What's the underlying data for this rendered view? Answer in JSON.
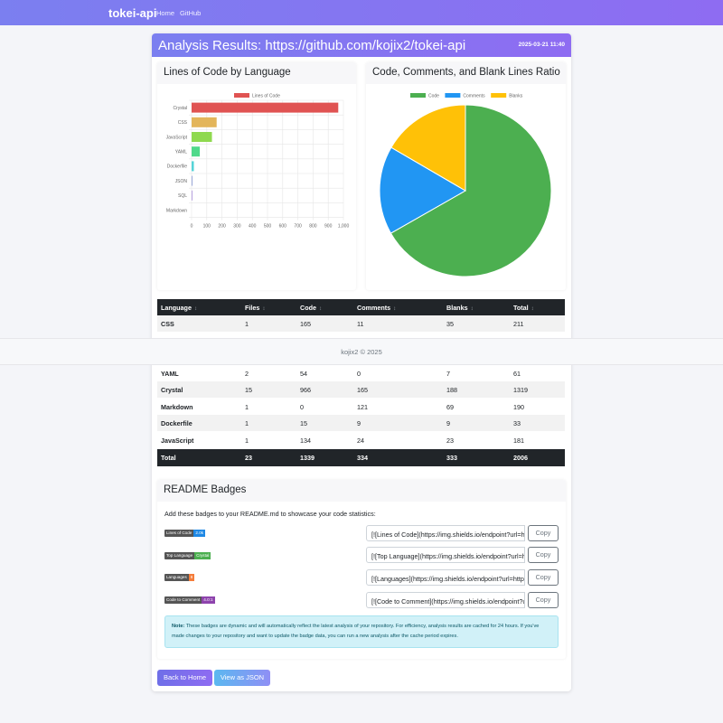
{
  "nav": {
    "brand": "tokei-api",
    "links": [
      "Home",
      "GitHub"
    ]
  },
  "header": {
    "title": "Analysis Results: https://github.com/kojix2/tokei-api",
    "date": "2025-03-21 11:40"
  },
  "colors": {
    "accent": "#7b7ff0",
    "accent2": "#8e6cf2",
    "dark": "#212529"
  },
  "bar_panel": {
    "title": "Lines of Code by Language"
  },
  "pie_panel": {
    "title": "Code, Comments, and Blank Lines Ratio"
  },
  "chart_data": [
    {
      "type": "bar",
      "orientation": "horizontal",
      "categories": [
        "Crystal",
        "CSS",
        "JavaScript",
        "YAML",
        "Dockerfile",
        "JSON",
        "SQL",
        "Markdown"
      ],
      "series": [
        {
          "name": "Lines of Code",
          "values": [
            966,
            165,
            134,
            54,
            15,
            3,
            1,
            0
          ],
          "colors": [
            "#e05352",
            "#e3b55a",
            "#8fd94f",
            "#4fd98a",
            "#56d4d8",
            "#9aa8d8",
            "#b8a2e0",
            "#e0a2c8"
          ]
        }
      ],
      "x_ticks": [
        "0",
        "100",
        "200",
        "300",
        "400",
        "500",
        "600",
        "700",
        "800",
        "900",
        "1,000"
      ],
      "xlim": [
        0,
        1000
      ],
      "grid": true,
      "legend": "top"
    },
    {
      "type": "pie",
      "labels": [
        "Code",
        "Comments",
        "Blanks"
      ],
      "values": [
        1339,
        334,
        333
      ],
      "colors": [
        "#4caf50",
        "#2196f3",
        "#ffc107"
      ],
      "legend": "top"
    }
  ],
  "table": {
    "headers": [
      "Language",
      "Files",
      "Code",
      "Comments",
      "Blanks",
      "Total"
    ],
    "sort_icon": "↕",
    "top_rows": [
      [
        "CSS",
        "1",
        "165",
        "11",
        "35",
        "211"
      ]
    ],
    "bottom_rows": [
      [
        "YAML",
        "2",
        "54",
        "0",
        "7",
        "61"
      ],
      [
        "Crystal",
        "15",
        "966",
        "165",
        "188",
        "1319"
      ],
      [
        "Markdown",
        "1",
        "0",
        "121",
        "69",
        "190"
      ],
      [
        "Dockerfile",
        "1",
        "15",
        "9",
        "9",
        "33"
      ],
      [
        "JavaScript",
        "1",
        "134",
        "24",
        "23",
        "181"
      ]
    ],
    "total": [
      "Total",
      "23",
      "1339",
      "334",
      "333",
      "2006"
    ]
  },
  "footer": {
    "text": "kojix2 © 2025"
  },
  "badges": {
    "title": "README Badges",
    "intro": "Add these badges to your README.md to showcase your code statistics:",
    "items": [
      {
        "label": "Lines of Code",
        "value": "2.0k",
        "color": "#1e88e5",
        "code": "[![Lines of Code](https://img.shields.io/endpoint?url=https",
        "copy": "Copy"
      },
      {
        "label": "Top Language",
        "value": "Crystal",
        "color": "#4caf50",
        "code": "[![Top Language](https://img.shields.io/endpoint?url=htt",
        "copy": "Copy"
      },
      {
        "label": "Languages",
        "value": "8",
        "color": "#f57c3a",
        "code": "[![Languages](https://img.shields.io/endpoint?url=https%",
        "copy": "Copy"
      },
      {
        "label": "Code to Comment",
        "value": "4.0:1",
        "color": "#8e44ad",
        "code": "[![Code to Comment](https://img.shields.io/endpoint?url",
        "copy": "Copy"
      }
    ],
    "note_label": "Note:",
    "note_text": "These badges are dynamic and will automatically reflect the latest analysis of your repository. For efficiency, analysis results are cached for 24 hours. If you've made changes to your repository and want to update the badge data, you can run a new analysis after the cache period expires."
  },
  "actions": {
    "back": "Back to Home",
    "json": "View as JSON"
  }
}
